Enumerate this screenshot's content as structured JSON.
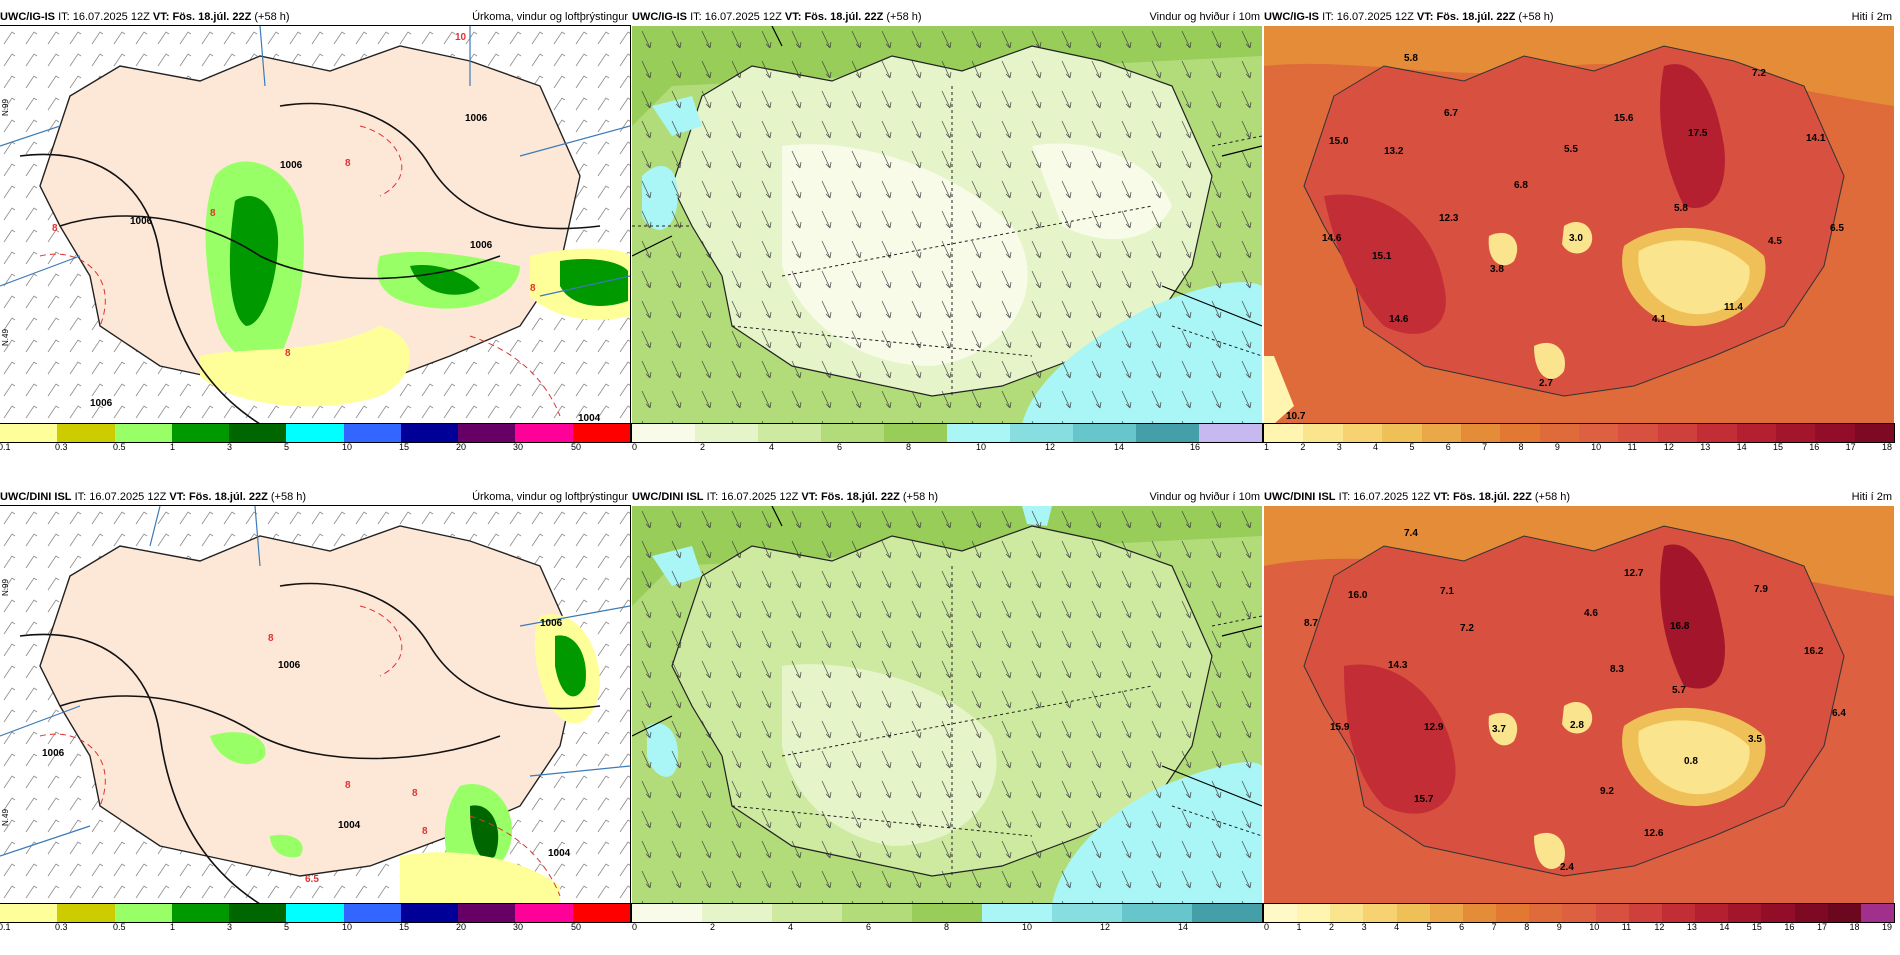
{
  "panels": [
    {
      "id": "igis-precip",
      "model": "UWC/IG-IS",
      "it_label": "IT:",
      "it": "16.07.2025 12Z",
      "vt_label": "VT:",
      "vt": "Fös. 18.júl. 22Z",
      "lead": "(+58 h)",
      "title": "Úrkoma, vindur og loftþrýstingur",
      "colorbar": [
        "#ffff99",
        "#cccc00",
        "#99ff66",
        "#009900",
        "#006600",
        "#00ffff",
        "#3366ff",
        "#000099",
        "#660066",
        "#ff0099",
        "#ff0000"
      ],
      "ticks": [
        "0.1",
        "0.3",
        "0.5",
        "1",
        "3",
        "5",
        "10",
        "15",
        "20",
        "30",
        "50"
      ],
      "labels": [
        {
          "text": "1006"
        },
        {
          "text": "1006"
        },
        {
          "text": "1006"
        },
        {
          "text": "1006"
        },
        {
          "text": "1006"
        },
        {
          "text": "1004"
        },
        {
          "text": "10"
        },
        {
          "text": "8"
        },
        {
          "text": "8"
        },
        {
          "text": "8"
        },
        {
          "text": "8"
        },
        {
          "text": "8"
        }
      ],
      "lat_label": "N.99",
      "lat_label2": "N.49"
    },
    {
      "id": "igis-wind",
      "model": "UWC/IG-IS",
      "it_label": "IT:",
      "it": "16.07.2025 12Z",
      "vt_label": "VT:",
      "vt": "Fös. 18.júl. 22Z",
      "lead": "(+58 h)",
      "title": "Vindur og hviður í 10m",
      "colorbar": [
        "#f7fbe8",
        "#e6f5c9",
        "#cdeaa0",
        "#b2dc7a",
        "#98cd5a",
        "#aaf5f5",
        "#88dde0",
        "#66c6cc",
        "#449fa8",
        "#c8b8f0"
      ],
      "ticks": [
        "0",
        "2",
        "4",
        "6",
        "8",
        "10",
        "12",
        "14",
        "16"
      ]
    },
    {
      "id": "igis-temp",
      "model": "UWC/IG-IS",
      "it_label": "IT:",
      "it": "16.07.2025 12Z",
      "vt_label": "VT:",
      "vt": "Fös. 18.júl. 22Z",
      "lead": "(+58 h)",
      "title": "Hiti í 2m",
      "colorbar": [
        "#fff4b0",
        "#fbe48e",
        "#f6d370",
        "#f0c058",
        "#eaa848",
        "#e58c38",
        "#e27832",
        "#df6a3a",
        "#dd6040",
        "#d85040",
        "#cf3f3c",
        "#c32e36",
        "#b42030",
        "#a3152a",
        "#920e28",
        "#7d0a22"
      ],
      "ticks": [
        "1",
        "2",
        "3",
        "4",
        "5",
        "6",
        "7",
        "8",
        "9",
        "10",
        "11",
        "12",
        "13",
        "14",
        "15",
        "16",
        "17",
        "18"
      ],
      "labels": [
        {
          "text": "5.8"
        },
        {
          "text": "6.7"
        },
        {
          "text": "15.0"
        },
        {
          "text": "13.2"
        },
        {
          "text": "5.5"
        },
        {
          "text": "15.6"
        },
        {
          "text": "17.5"
        },
        {
          "text": "7.2"
        },
        {
          "text": "14.1"
        },
        {
          "text": "6.8"
        },
        {
          "text": "12.3"
        },
        {
          "text": "5.8"
        },
        {
          "text": "6.5"
        },
        {
          "text": "14.6"
        },
        {
          "text": "3.0"
        },
        {
          "text": "4.5"
        },
        {
          "text": "15.1"
        },
        {
          "text": "3.8"
        },
        {
          "text": "14.6"
        },
        {
          "text": "4.1"
        },
        {
          "text": "11.4"
        },
        {
          "text": "2.7"
        },
        {
          "text": "10.7"
        }
      ]
    },
    {
      "id": "dini-precip",
      "model": "UWC/DINI ISL",
      "it_label": "IT:",
      "it": "16.07.2025 12Z",
      "vt_label": "VT:",
      "vt": "Fös. 18.júl. 22Z",
      "lead": "(+58 h)",
      "title": "Úrkoma, vindur og loftþrýstingur",
      "colorbar": [
        "#ffff99",
        "#cccc00",
        "#99ff66",
        "#009900",
        "#006600",
        "#00ffff",
        "#3366ff",
        "#000099",
        "#660066",
        "#ff0099",
        "#ff0000"
      ],
      "ticks": [
        "0.1",
        "0.3",
        "0.5",
        "1",
        "3",
        "5",
        "10",
        "15",
        "20",
        "30",
        "50"
      ],
      "labels": [
        {
          "text": "1006"
        },
        {
          "text": "1006"
        },
        {
          "text": "1006"
        },
        {
          "text": "1004"
        },
        {
          "text": "1004"
        },
        {
          "text": "8"
        },
        {
          "text": "8"
        },
        {
          "text": "8"
        },
        {
          "text": "8"
        },
        {
          "text": "6.5"
        }
      ],
      "lat_label": "N.99",
      "lat_label2": "N.49"
    },
    {
      "id": "dini-wind",
      "model": "UWC/DINI ISL",
      "it_label": "IT:",
      "it": "16.07.2025 12Z",
      "vt_label": "VT:",
      "vt": "Fös. 18.júl. 22Z",
      "lead": "(+58 h)",
      "title": "Vindur og hviður í 10m",
      "colorbar": [
        "#f7fbe8",
        "#e6f5c9",
        "#cdeaa0",
        "#b2dc7a",
        "#98cd5a",
        "#aaf5f5",
        "#88dde0",
        "#66c6cc",
        "#449fa8"
      ],
      "ticks": [
        "0",
        "2",
        "4",
        "6",
        "8",
        "10",
        "12",
        "14"
      ]
    },
    {
      "id": "dini-temp",
      "model": "UWC/DINI ISL",
      "it_label": "IT:",
      "it": "16.07.2025 12Z",
      "vt_label": "VT:",
      "vt": "Fös. 18.júl. 22Z",
      "lead": "(+58 h)",
      "title": "Hiti í 2m",
      "colorbar": [
        "#fff9c8",
        "#fff4b0",
        "#fbe48e",
        "#f6d370",
        "#f0c058",
        "#eaa848",
        "#e58c38",
        "#e27832",
        "#df6a3a",
        "#dd6040",
        "#d85040",
        "#cf3f3c",
        "#c32e36",
        "#b42030",
        "#a3152a",
        "#920e28",
        "#7d0a22",
        "#6b0820",
        "#a0308c"
      ],
      "ticks": [
        "0",
        "1",
        "2",
        "3",
        "4",
        "5",
        "6",
        "7",
        "8",
        "9",
        "10",
        "11",
        "12",
        "13",
        "14",
        "15",
        "16",
        "17",
        "18",
        "19"
      ],
      "labels": [
        {
          "text": "7.4"
        },
        {
          "text": "16.0"
        },
        {
          "text": "7.1"
        },
        {
          "text": "8.7"
        },
        {
          "text": "7.2"
        },
        {
          "text": "4.6"
        },
        {
          "text": "12.7"
        },
        {
          "text": "7.9"
        },
        {
          "text": "16.8"
        },
        {
          "text": "16.2"
        },
        {
          "text": "14.3"
        },
        {
          "text": "8.3"
        },
        {
          "text": "5.7"
        },
        {
          "text": "6.4"
        },
        {
          "text": "15.9"
        },
        {
          "text": "12.9"
        },
        {
          "text": "3.7"
        },
        {
          "text": "2.8"
        },
        {
          "text": "3.5"
        },
        {
          "text": "0.8"
        },
        {
          "text": "9.2"
        },
        {
          "text": "15.7"
        },
        {
          "text": "12.6"
        },
        {
          "text": "2.4"
        }
      ]
    }
  ]
}
